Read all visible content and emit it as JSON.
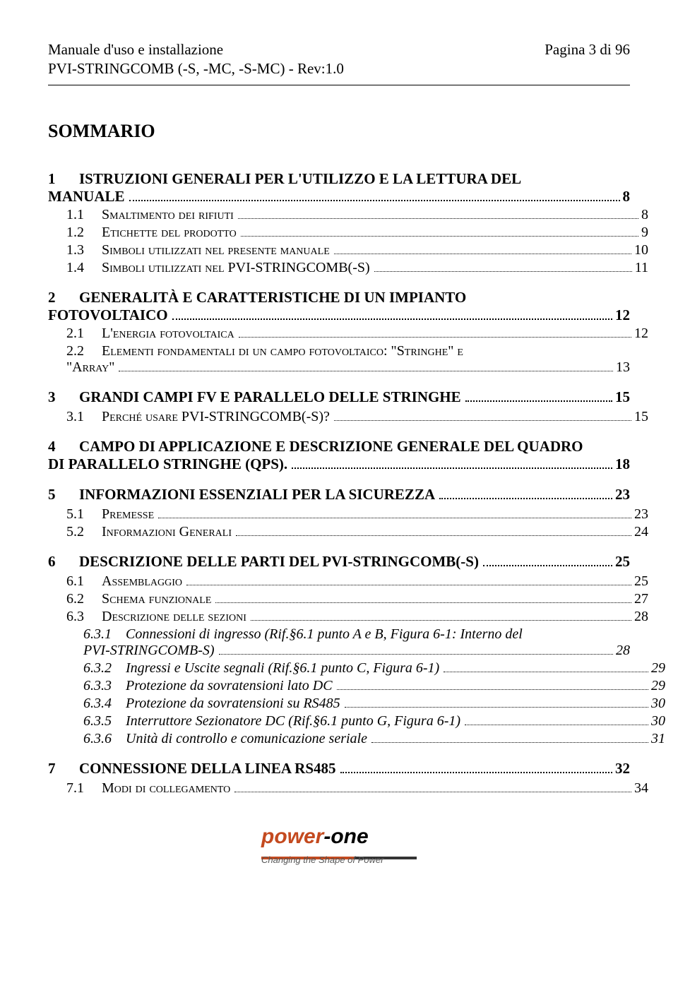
{
  "header": {
    "title_left": "Manuale d'uso e installazione",
    "title_right": "Pagina 3 di 96",
    "subtitle": "PVI-STRINGCOMB (-S, -MC, -S-MC) - Rev:1.0"
  },
  "sommario_title": "SOMMARIO",
  "toc": {
    "s1": {
      "num": "1",
      "label": "ISTRUZIONI GENERALI PER L'UTILIZZO E LA LETTURA DEL",
      "label2": "MANUALE",
      "page": "8"
    },
    "s1_1": {
      "num": "1.1",
      "label": "Smaltimento dei rifiuti",
      "page": "8"
    },
    "s1_2": {
      "num": "1.2",
      "label": "Etichette del prodotto",
      "page": "9"
    },
    "s1_3": {
      "num": "1.3",
      "label": "Simboli utilizzati nel presente manuale",
      "page": "10"
    },
    "s1_4": {
      "num": "1.4",
      "label": "Simboli utilizzati nel PVI-STRINGCOMB(-S)",
      "page": "11"
    },
    "s2": {
      "num": "2",
      "label": "GENERALITÀ E CARATTERISTICHE DI UN IMPIANTO",
      "label2": "FOTOVOLTAICO",
      "page": "12"
    },
    "s2_1": {
      "num": "2.1",
      "label": "L'energia fotovoltaica",
      "page": "12"
    },
    "s2_2": {
      "num": "2.2",
      "label": "Elementi fondamentali di un campo fotovoltaico: \"Stringhe\" e",
      "label2": "\"Array\"",
      "page": "13"
    },
    "s3": {
      "num": "3",
      "label": "GRANDI CAMPI FV E PARALLELO DELLE STRINGHE",
      "page": "15"
    },
    "s3_1": {
      "num": "3.1",
      "label": "Perché usare PVI-STRINGCOMB(-S)?",
      "page": "15"
    },
    "s4": {
      "num": "4",
      "label": "CAMPO DI APPLICAZIONE E DESCRIZIONE GENERALE DEL QUADRO",
      "label2": "DI PARALLELO STRINGHE (QPS).",
      "page": "18"
    },
    "s5": {
      "num": "5",
      "label": "INFORMAZIONI ESSENZIALI PER LA SICUREZZA",
      "page": "23"
    },
    "s5_1": {
      "num": "5.1",
      "label": "Premesse",
      "page": "23"
    },
    "s5_2": {
      "num": "5.2",
      "label": "Informazioni Generali",
      "page": "24"
    },
    "s6": {
      "num": "6",
      "label": "DESCRIZIONE DELLE PARTI DEL PVI-STRINGCOMB(-S)",
      "page": "25"
    },
    "s6_1": {
      "num": "6.1",
      "label": "Assemblaggio",
      "page": "25"
    },
    "s6_2": {
      "num": "6.2",
      "label": "Schema funzionale",
      "page": "27"
    },
    "s6_3": {
      "num": "6.3",
      "label": "Descrizione delle sezioni",
      "page": "28"
    },
    "s6_3_1": {
      "num": "6.3.1",
      "label": "Connessioni di ingresso (Rif.§6.1 punto A e B, Figura 6-1: Interno del",
      "label2": "PVI-STRINGCOMB-S)",
      "page": "28"
    },
    "s6_3_2": {
      "num": "6.3.2",
      "label": "Ingressi e Uscite segnali (Rif.§6.1 punto C, Figura 6-1)",
      "page": "29"
    },
    "s6_3_3": {
      "num": "6.3.3",
      "label": "Protezione da sovratensioni lato DC",
      "page": "29"
    },
    "s6_3_4": {
      "num": "6.3.4",
      "label": "Protezione da sovratensioni su RS485",
      "page": "30"
    },
    "s6_3_5": {
      "num": "6.3.5",
      "label": "Interruttore Sezionatore DC (Rif.§6.1 punto G, Figura 6-1)",
      "page": "30"
    },
    "s6_3_6": {
      "num": "6.3.6",
      "label": "Unità di controllo e comunicazione seriale",
      "page": "31"
    },
    "s7": {
      "num": "7",
      "label": "CONNESSIONE DELLA LINEA RS485",
      "page": "32"
    },
    "s7_1": {
      "num": "7.1",
      "label": "Modi di collegamento",
      "page": "34"
    }
  },
  "logo": {
    "brand_part1": "power",
    "brand_part2": "-one",
    "tagline": "Changing the Shape of Power"
  }
}
